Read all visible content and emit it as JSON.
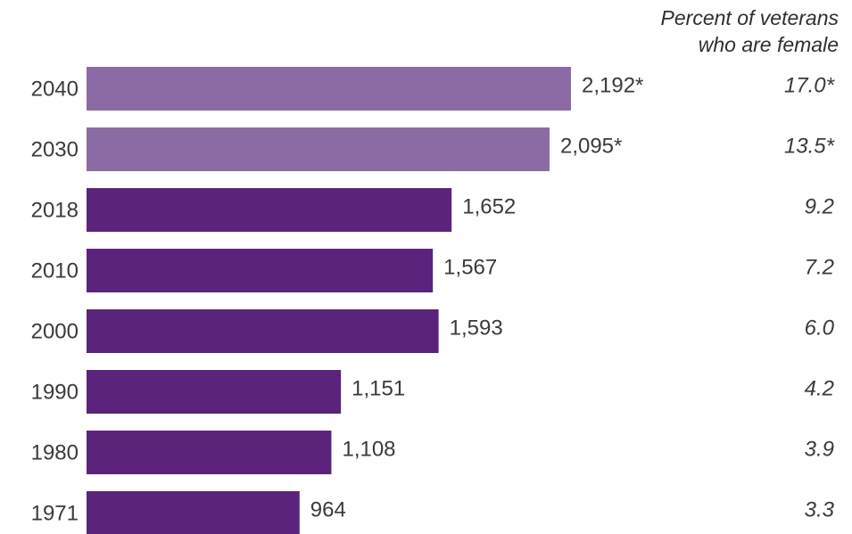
{
  "chart_data": {
    "type": "bar",
    "orientation": "horizontal",
    "categories": [
      "2040",
      "2030",
      "2018",
      "2010",
      "2000",
      "1990",
      "1980",
      "1971"
    ],
    "values": [
      2192,
      2095,
      1652,
      1567,
      1593,
      1151,
      1108,
      964
    ],
    "value_labels": [
      "2,192*",
      "2,095*",
      "1,652",
      "1,567",
      "1,593",
      "1,151",
      "1,108",
      "964"
    ],
    "projected": [
      true,
      true,
      false,
      false,
      false,
      false,
      false,
      false
    ],
    "secondary_column": {
      "header_line1": "Percent of veterans",
      "header_line2": "who are female",
      "values": [
        17.0,
        13.5,
        9.2,
        7.2,
        6.0,
        4.2,
        3.9,
        3.3
      ],
      "labels": [
        "17.0*",
        "13.5*",
        "9.2",
        "7.2",
        "6.0",
        "4.2",
        "3.9",
        "3.3"
      ]
    },
    "title": "",
    "xlabel": "",
    "ylabel": "",
    "xlim": [
      0,
      2192
    ],
    "grid": false,
    "legend": "none",
    "colors": {
      "actual": "#5c237d",
      "projected": "#8c6aa5",
      "text": "#3a3a3a"
    }
  }
}
